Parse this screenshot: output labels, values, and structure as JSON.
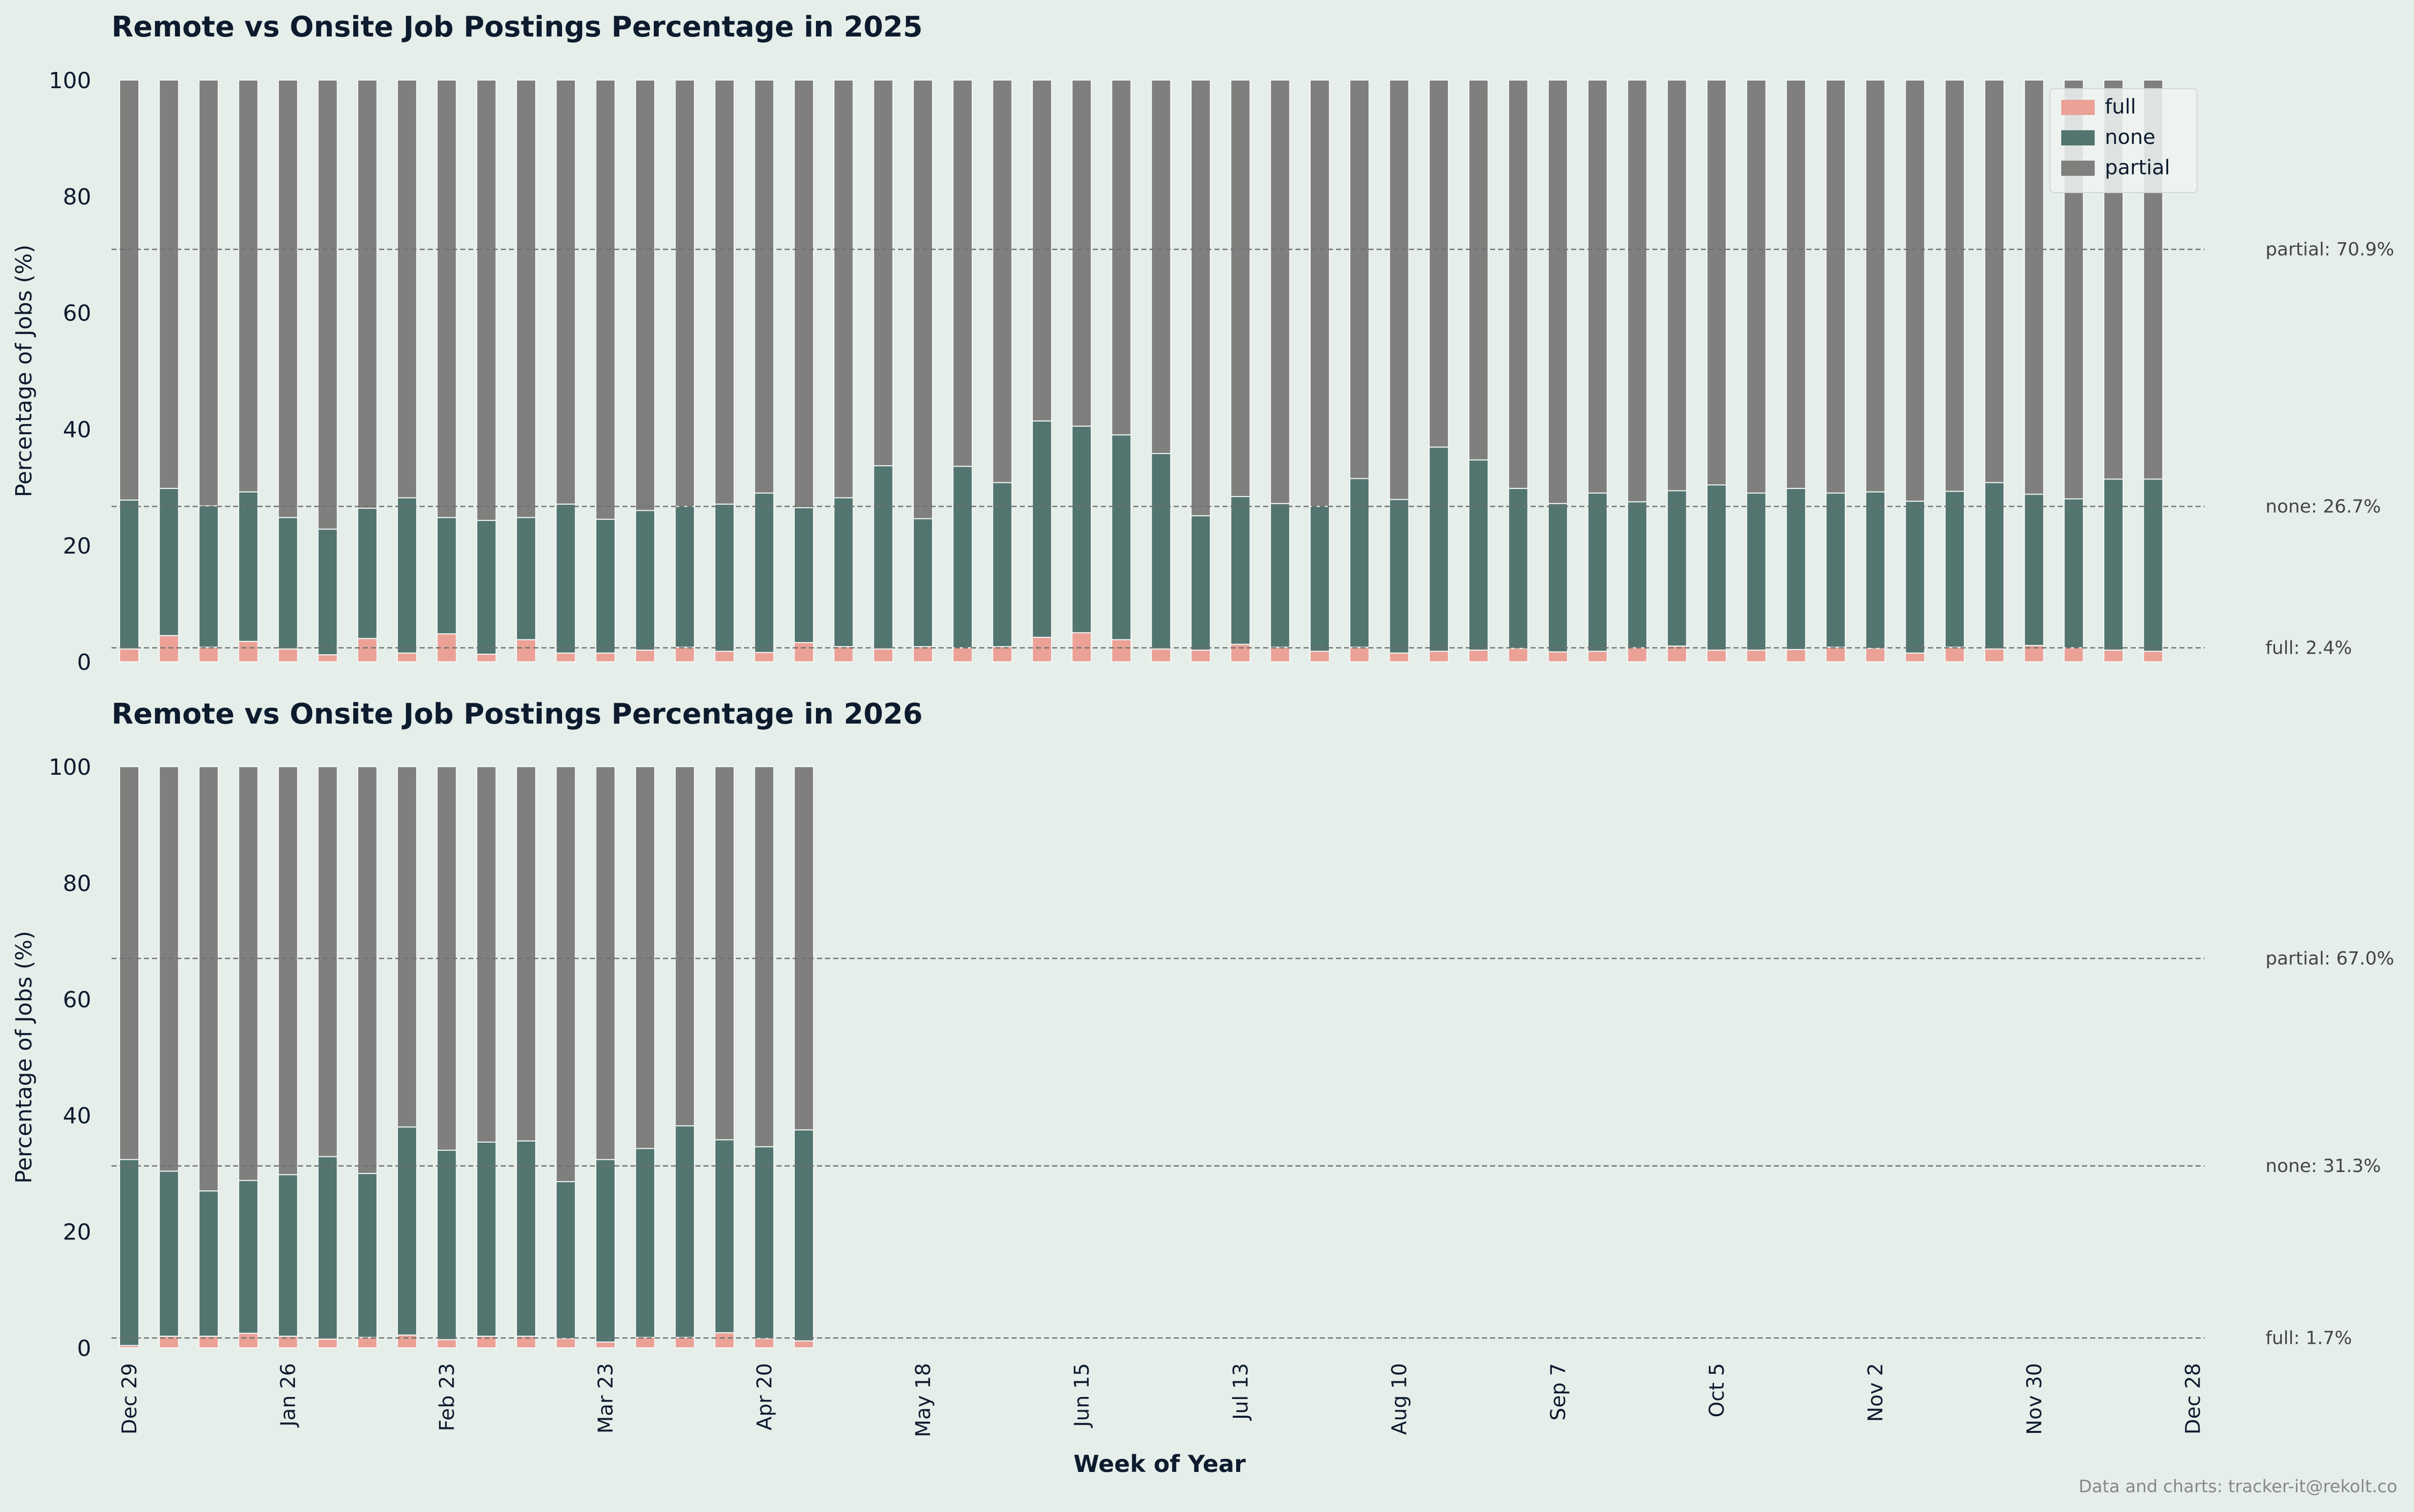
{
  "colors": {
    "background": "#e6eeea",
    "full": "#eba196",
    "none": "#527570",
    "partial": "#7f807d",
    "title": "#0d1b2e",
    "refline": "#707070",
    "reftext": "#444444",
    "credit": "#888888"
  },
  "legend": {
    "position": "top-right",
    "items": [
      {
        "key": "full",
        "label": "full"
      },
      {
        "key": "none",
        "label": "none"
      },
      {
        "key": "partial",
        "label": "partial"
      }
    ]
  },
  "x_axis": {
    "label": "Week of Year",
    "tick_labels": [
      "Dec 29",
      "Jan 26",
      "Feb 23",
      "Mar 23",
      "Apr 20",
      "May 18",
      "Jun 15",
      "Jul 13",
      "Aug 10",
      "Sep 7",
      "Oct 5",
      "Nov 2",
      "Nov 30",
      "Dec 28"
    ],
    "tick_weeks": [
      0,
      4,
      8,
      12,
      16,
      20,
      24,
      28,
      32,
      36,
      40,
      44,
      48,
      52
    ]
  },
  "credit": "Data and charts: tracker-it@rekolt.co",
  "chart_data": [
    {
      "type": "bar",
      "stacked": true,
      "title": "Remote vs Onsite Job Postings Percentage in 2025",
      "ylabel": "Percentage of Jobs (%)",
      "ylim": [
        0,
        100
      ],
      "yticks": [
        0,
        20,
        40,
        60,
        80,
        100
      ],
      "categories": [
        "Dec 29",
        "Jan 5",
        "Jan 12",
        "Jan 19",
        "Jan 26",
        "Feb 2",
        "Feb 9",
        "Feb 16",
        "Feb 23",
        "Mar 2",
        "Mar 9",
        "Mar 16",
        "Mar 23",
        "Mar 30",
        "Apr 6",
        "Apr 13",
        "Apr 20",
        "Apr 27",
        "May 4",
        "May 11",
        "May 18",
        "May 25",
        "Jun 1",
        "Jun 8",
        "Jun 15",
        "Jun 22",
        "Jun 29",
        "Jul 6",
        "Jul 13",
        "Jul 20",
        "Jul 27",
        "Aug 3",
        "Aug 10",
        "Aug 17",
        "Aug 24",
        "Aug 31",
        "Sep 7",
        "Sep 14",
        "Sep 21",
        "Sep 28",
        "Oct 5",
        "Oct 12",
        "Oct 19",
        "Oct 26",
        "Nov 2",
        "Nov 9",
        "Nov 16",
        "Nov 23",
        "Nov 30",
        "Dec 7",
        "Dec 14",
        "Dec 21"
      ],
      "series": [
        {
          "name": "full",
          "values": [
            2.2,
            4.5,
            2.5,
            3.5,
            2.2,
            1.2,
            4.0,
            1.5,
            4.8,
            1.3,
            3.8,
            1.5,
            1.5,
            2.0,
            2.5,
            1.8,
            1.6,
            3.3,
            2.6,
            2.2,
            2.6,
            2.4,
            2.6,
            4.2,
            5.0,
            3.8,
            2.2,
            2.0,
            3.0,
            2.5,
            1.8,
            2.5,
            1.5,
            1.8,
            2.0,
            2.3,
            1.7,
            1.8,
            2.4,
            2.7,
            2.0,
            2.0,
            2.1,
            2.5,
            2.3,
            1.5,
            2.5,
            2.2,
            2.8,
            2.4,
            2.0,
            1.8
          ]
        },
        {
          "name": "none",
          "values": [
            25.6,
            25.3,
            24.3,
            25.7,
            22.6,
            21.6,
            22.4,
            26.7,
            20.0,
            23.0,
            21.0,
            25.6,
            23.0,
            24.0,
            24.2,
            25.3,
            27.4,
            23.2,
            25.6,
            31.5,
            22.0,
            31.2,
            28.2,
            37.2,
            35.5,
            35.2,
            33.6,
            23.1,
            25.4,
            24.7,
            24.9,
            29.0,
            26.4,
            35.1,
            32.7,
            27.5,
            25.5,
            27.2,
            25.1,
            26.7,
            28.4,
            27.0,
            27.7,
            26.5,
            26.9,
            26.1,
            26.8,
            28.6,
            26.0,
            25.6,
            29.4,
            29.6
          ]
        },
        {
          "name": "partial",
          "values": [
            72.2,
            70.2,
            73.2,
            70.8,
            75.2,
            77.2,
            73.6,
            71.8,
            75.2,
            75.7,
            75.2,
            72.9,
            75.5,
            74.0,
            73.3,
            72.9,
            71.0,
            73.5,
            71.8,
            66.3,
            75.4,
            66.4,
            69.2,
            58.6,
            59.5,
            61.0,
            64.2,
            74.9,
            71.6,
            72.8,
            73.3,
            68.5,
            72.1,
            63.1,
            65.3,
            70.2,
            72.8,
            71.0,
            72.5,
            70.6,
            69.6,
            71.0,
            70.2,
            71.0,
            70.8,
            72.4,
            70.7,
            69.2,
            71.2,
            72.0,
            68.6,
            68.6
          ]
        }
      ],
      "reference_lines": [
        {
          "label": "partial: 70.9%",
          "value": 70.9
        },
        {
          "label": "none: 26.7%",
          "value": 26.7
        },
        {
          "label": "full: 2.4%",
          "value": 2.4
        }
      ]
    },
    {
      "type": "bar",
      "stacked": true,
      "title": "Remote vs Onsite Job Postings Percentage in 2026",
      "ylabel": "Percentage of Jobs (%)",
      "ylim": [
        0,
        100
      ],
      "yticks": [
        0,
        20,
        40,
        60,
        80,
        100
      ],
      "categories": [
        "Dec 29",
        "Jan 5",
        "Jan 12",
        "Jan 19",
        "Jan 26",
        "Feb 2",
        "Feb 9",
        "Feb 16",
        "Feb 23",
        "Mar 2",
        "Mar 9",
        "Mar 16",
        "Mar 23",
        "Mar 30",
        "Apr 6",
        "Apr 13",
        "Apr 20",
        "Apr 27"
      ],
      "series": [
        {
          "name": "full",
          "values": [
            0.4,
            2.0,
            2.0,
            2.5,
            2.0,
            1.5,
            1.8,
            2.2,
            1.4,
            2.0,
            2.0,
            1.6,
            1.0,
            1.8,
            1.8,
            2.6,
            1.6,
            1.2
          ]
        },
        {
          "name": "none",
          "values": [
            32.0,
            28.4,
            25.0,
            26.3,
            27.8,
            31.4,
            28.2,
            35.8,
            32.6,
            33.4,
            33.6,
            27.0,
            31.4,
            32.5,
            36.4,
            33.2,
            33.0,
            36.3
          ]
        },
        {
          "name": "partial",
          "values": [
            67.6,
            69.6,
            73.0,
            71.2,
            70.2,
            67.1,
            70.0,
            62.0,
            66.0,
            64.6,
            64.4,
            71.4,
            67.6,
            65.7,
            61.8,
            64.2,
            65.4,
            62.5
          ]
        }
      ],
      "reference_lines": [
        {
          "label": "partial: 67.0%",
          "value": 67.0
        },
        {
          "label": "none: 31.3%",
          "value": 31.3
        },
        {
          "label": "full: 1.7%",
          "value": 1.7
        }
      ]
    }
  ]
}
